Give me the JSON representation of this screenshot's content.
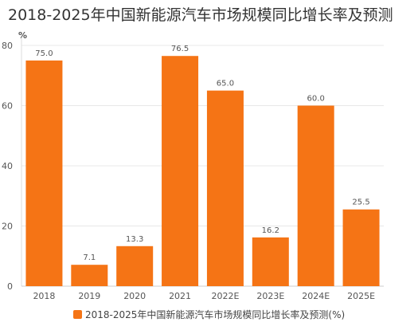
{
  "chart_data": {
    "type": "bar",
    "title": "2018-2025年中国新能源汽车市场规模同比增长率及预测",
    "unit": "%",
    "categories": [
      "2018",
      "2019",
      "2020",
      "2021",
      "2022E",
      "2023E",
      "2024E",
      "2025E"
    ],
    "series": [
      {
        "name": "2018-2025年中国新能源汽车市场规模同比增长率及预测(%)",
        "values": [
          75.0,
          7.1,
          13.3,
          76.5,
          65.0,
          16.2,
          60.0,
          25.5
        ],
        "labels": [
          "75.0",
          "7.1",
          "13.3",
          "76.5",
          "65.0",
          "16.2",
          "60.0",
          "25.5"
        ],
        "color": "#f57415"
      }
    ],
    "ylim": [
      0,
      80
    ],
    "yticks": [
      "0",
      "20",
      "40",
      "60",
      "80"
    ],
    "grid": true,
    "legend": "bottom-center"
  }
}
